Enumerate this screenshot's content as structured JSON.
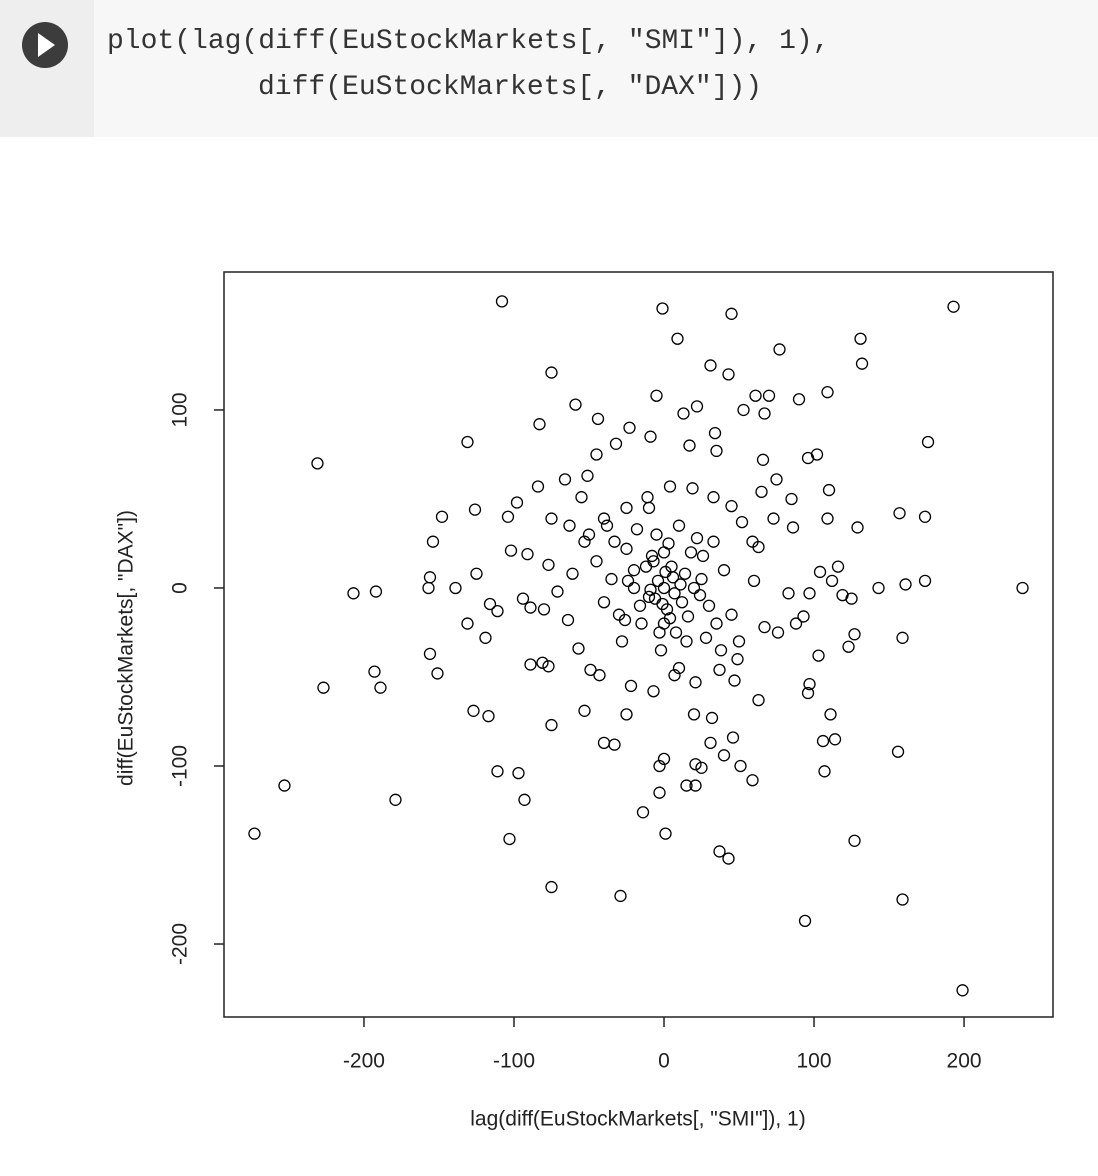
{
  "code": [
    "plot(lag(diff(EuStockMarkets[, \"SMI\"]), 1),",
    "diff(EuStockMarkets[, \"DAX\"]))"
  ],
  "chart_data": {
    "type": "scatter",
    "x_label": "lag(diff(EuStockMarkets[, \"SMI\"]), 1)",
    "y_label": "diff(EuStockMarkets[, \"DAX\"])",
    "color": "#000000",
    "xlim": [
      -293.3,
      259.3
    ],
    "ylim": [
      -241,
      177.5
    ],
    "xticks": [
      -200,
      -100,
      0,
      100,
      200
    ],
    "yticks": [
      -200,
      -100,
      0,
      100
    ],
    "x": [
      -108,
      -1,
      45,
      193,
      9,
      131,
      132,
      77,
      31,
      -75,
      43,
      109,
      90,
      61,
      70,
      -5,
      -59,
      13,
      22,
      -44,
      176,
      -131,
      -231,
      96,
      102,
      -83,
      -84,
      110,
      -148,
      -126,
      -104,
      -98,
      157,
      174,
      109,
      129,
      -154,
      -102,
      -156,
      -157,
      -139,
      -125,
      -207,
      -192,
      143,
      161,
      174,
      239,
      -116,
      -111,
      -119,
      -131,
      -156,
      -151,
      -193,
      -189,
      -227,
      -127,
      -117,
      159,
      127,
      123,
      103,
      96,
      97,
      111,
      106,
      114,
      156,
      107,
      -111,
      -97,
      -93,
      -253,
      -179,
      -273,
      -103,
      127,
      -75,
      -75,
      -29,
      94,
      159,
      199,
      37,
      43,
      1,
      -14,
      -3,
      15,
      21,
      21,
      25,
      0,
      -3,
      51,
      59,
      40,
      46,
      31,
      20,
      32,
      -40,
      -33,
      63,
      -53,
      -25,
      -77,
      -81,
      -89,
      97,
      88,
      93,
      83,
      104,
      116,
      112,
      119,
      125,
      -80,
      -89,
      -94,
      -91,
      -77,
      -75,
      -63,
      -66,
      -51,
      -55,
      -45,
      -32,
      -23,
      -9,
      17,
      35,
      34,
      53,
      67,
      66,
      75,
      85,
      65,
      73,
      86,
      63,
      60,
      67,
      76,
      49,
      37,
      47,
      21,
      7,
      -7,
      -22,
      -43,
      -49,
      -57,
      -64,
      -71,
      -61,
      -53,
      -40,
      -25,
      -11,
      4,
      19,
      33,
      45,
      52,
      59,
      -20,
      -10,
      0,
      5,
      12,
      18,
      25,
      -30,
      -25,
      8,
      -5,
      15,
      30,
      -15,
      2,
      -8,
      22,
      -35,
      35,
      -2,
      10,
      28,
      -28,
      -18,
      40,
      -40,
      0,
      0,
      20,
      -20,
      6,
      -6,
      14,
      -12,
      16,
      -16,
      3,
      -3,
      26,
      -26,
      33,
      -33,
      -45,
      45,
      10,
      -10,
      50,
      -50,
      38,
      -38,
      7,
      -4,
      11,
      -9,
      1,
      -1,
      24,
      -24,
      4,
      -7
    ],
    "y": [
      161,
      157,
      154,
      158,
      140,
      140,
      126,
      134,
      125,
      121,
      120,
      110,
      106,
      108,
      108,
      108,
      103,
      98,
      102,
      95,
      82,
      82,
      70,
      73,
      75,
      92,
      57,
      55,
      40,
      44,
      40,
      48,
      42,
      40,
      39,
      34,
      26,
      21,
      6,
      0,
      0,
      8,
      -3,
      -2,
      0,
      2,
      4,
      0,
      -9,
      -13,
      -28,
      -20,
      -37,
      -48,
      -47,
      -56,
      -56,
      -69,
      -72,
      -28,
      -26,
      -33,
      -38,
      -59,
      -54,
      -71,
      -86,
      -85,
      -92,
      -103,
      -103,
      -104,
      -119,
      -111,
      -119,
      -138,
      -141,
      -142,
      -77,
      -168,
      -173,
      -187,
      -175,
      -226,
      -148,
      -152,
      -138,
      -126,
      -115,
      -111,
      -111,
      -99,
      -101,
      -96,
      -100,
      -100,
      -108,
      -94,
      -84,
      -87,
      -71,
      -73,
      -87,
      -88,
      -63,
      -69,
      -71,
      -44,
      -42,
      -43,
      -3,
      -20,
      -16,
      -3,
      9,
      12,
      4,
      -4,
      -6,
      -12,
      -11,
      -6,
      19,
      13,
      39,
      35,
      61,
      63,
      51,
      75,
      81,
      90,
      85,
      80,
      77,
      87,
      100,
      98,
      72,
      61,
      50,
      54,
      39,
      34,
      23,
      4,
      -22,
      -25,
      -40,
      -46,
      -52,
      -53,
      -49,
      -58,
      -55,
      -49,
      -46,
      -34,
      -18,
      -2,
      8,
      26,
      39,
      45,
      51,
      57,
      56,
      51,
      46,
      37,
      26,
      10,
      -5,
      0,
      12,
      -8,
      20,
      5,
      -15,
      22,
      -25,
      30,
      -30,
      -10,
      -20,
      -12,
      18,
      28,
      5,
      -20,
      -35,
      35,
      -28,
      -30,
      33,
      10,
      -8,
      20,
      -20,
      0,
      0,
      6,
      -6,
      8,
      12,
      -16,
      -10,
      25,
      -25,
      18,
      -18,
      26,
      26,
      15,
      -15,
      -45,
      45,
      -30,
      30,
      -35,
      35,
      -3,
      4,
      2,
      -1,
      9,
      -9,
      -4,
      4,
      -17,
      15
    ]
  }
}
